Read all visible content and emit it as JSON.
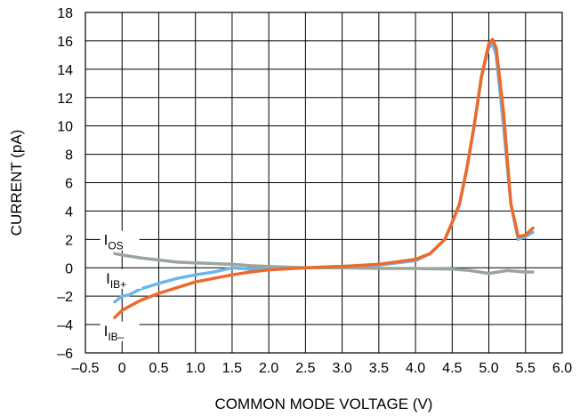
{
  "chart_data": {
    "type": "line",
    "xlabel": "COMMON MODE VOLTAGE (V)",
    "ylabel": "CURRENT (pA)",
    "xlim": [
      -0.5,
      6.0
    ],
    "ylim": [
      -6,
      18
    ],
    "x_ticks": [
      -0.5,
      0,
      0.5,
      1.0,
      1.5,
      2.0,
      2.5,
      3.0,
      3.5,
      4.0,
      4.5,
      5.0,
      5.5,
      6.0
    ],
    "x_tick_labels": [
      "–0.5",
      "0",
      "0.5",
      "1.0",
      "1.5",
      "2.0",
      "2.5",
      "3.0",
      "3.5",
      "4.0",
      "4.5",
      "5.0",
      "5.5",
      "6.0"
    ],
    "y_ticks": [
      -6,
      -4,
      -2,
      0,
      2,
      4,
      6,
      8,
      10,
      12,
      14,
      16,
      18
    ],
    "y_tick_labels": [
      "–6",
      "–4",
      "–2",
      "0",
      "2",
      "4",
      "6",
      "8",
      "10",
      "12",
      "14",
      "16",
      "18"
    ],
    "grid": true,
    "series": [
      {
        "label_main": "I",
        "label_sub": "OS",
        "color": "#9aa69c",
        "label_anchor": [
          -0.25,
          1.6
        ],
        "x": [
          -0.1,
          0.0,
          0.25,
          0.5,
          0.75,
          1.0,
          1.25,
          1.5,
          1.75,
          2.0,
          2.5,
          3.0,
          3.5,
          4.0,
          4.5,
          4.75,
          5.0,
          5.25,
          5.5,
          5.6
        ],
        "y": [
          1.0,
          0.9,
          0.7,
          0.55,
          0.4,
          0.35,
          0.3,
          0.25,
          0.15,
          0.1,
          0.0,
          0.0,
          -0.05,
          -0.05,
          -0.1,
          -0.2,
          -0.4,
          -0.2,
          -0.3,
          -0.3
        ]
      },
      {
        "label_main": "I",
        "label_sub": "IB+",
        "color": "#6db5e8",
        "label_anchor": [
          -0.22,
          -1.1
        ],
        "x": [
          -0.1,
          0.0,
          0.1,
          0.25,
          0.5,
          0.75,
          1.0,
          1.25,
          1.5,
          1.75,
          2.0,
          2.5,
          3.0,
          3.5,
          4.0,
          4.2,
          4.4,
          4.5,
          4.6,
          4.7,
          4.8,
          4.9,
          5.0,
          5.05,
          5.1,
          5.2,
          5.3,
          5.4,
          5.5,
          5.6
        ],
        "y": [
          -2.4,
          -2.0,
          -1.9,
          -1.5,
          -1.1,
          -0.75,
          -0.5,
          -0.3,
          0.0,
          -0.1,
          -0.1,
          0.0,
          0.1,
          0.2,
          0.5,
          1.0,
          2.0,
          3.2,
          4.5,
          7.0,
          10.0,
          13.5,
          15.5,
          15.8,
          15.0,
          10.0,
          4.5,
          2.0,
          2.2,
          2.5
        ]
      },
      {
        "label_main": "I",
        "label_sub": "IB–",
        "color": "#ec6a2b",
        "label_anchor": [
          -0.25,
          -4.8
        ],
        "x": [
          -0.1,
          0.0,
          0.25,
          0.5,
          0.75,
          1.0,
          1.25,
          1.5,
          1.75,
          2.0,
          2.5,
          3.0,
          3.5,
          4.0,
          4.2,
          4.4,
          4.5,
          4.6,
          4.7,
          4.8,
          4.9,
          5.0,
          5.05,
          5.1,
          5.2,
          5.3,
          5.4,
          5.5,
          5.6
        ],
        "y": [
          -3.5,
          -3.0,
          -2.3,
          -1.8,
          -1.4,
          -1.0,
          -0.75,
          -0.5,
          -0.3,
          -0.15,
          0.0,
          0.1,
          0.25,
          0.6,
          1.0,
          2.0,
          3.2,
          4.5,
          7.0,
          10.0,
          13.5,
          15.8,
          16.1,
          15.5,
          11.0,
          4.5,
          2.2,
          2.3,
          2.8
        ]
      }
    ]
  }
}
